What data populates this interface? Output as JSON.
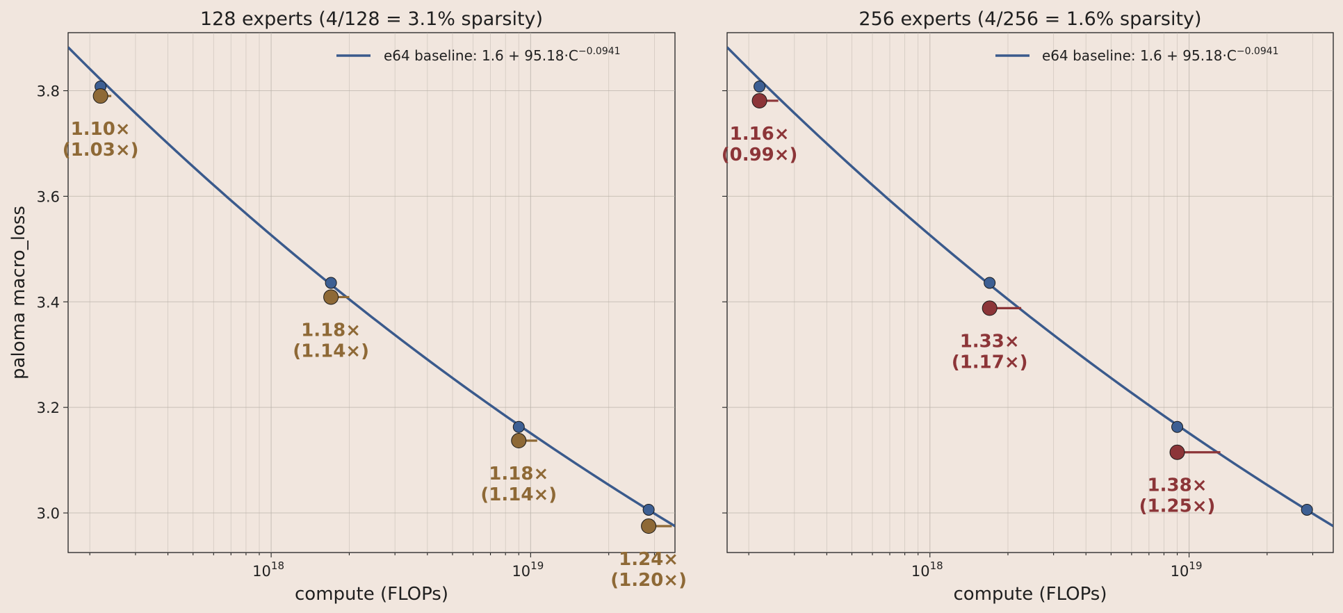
{
  "colors": {
    "background": "#f1e6de",
    "baseline_line": "#3a5a8c",
    "baseline_point": "#3d5f93",
    "panel1_accent": "#8e6936",
    "panel2_accent": "#8c3538",
    "grid": "#b8b0a8"
  },
  "chart_data": [
    {
      "type": "scatter",
      "title": "128 experts  (4/128 = 3.1% sparsity)",
      "xlabel": "compute (FLOPs)",
      "ylabel": "paloma macro_loss",
      "x_scale": "log",
      "xlim": [
        1.65e+17,
        3.6e+19
      ],
      "ylim": [
        2.925,
        3.91
      ],
      "grid": true,
      "legend_position": "top-right",
      "x_ticks": [
        {
          "value": 1e+18,
          "base": "10",
          "exp": "18"
        },
        {
          "value": 1e+19,
          "base": "10",
          "exp": "19"
        }
      ],
      "y_ticks": [
        {
          "value": 3.0,
          "label": "3.0"
        },
        {
          "value": 3.2,
          "label": "3.2"
        },
        {
          "value": 3.4,
          "label": "3.4"
        },
        {
          "value": 3.6,
          "label": "3.6"
        },
        {
          "value": 3.8,
          "label": "3.8"
        }
      ],
      "baseline_fit": {
        "legend_text": "e64 baseline: 1.6 + 95.18·C",
        "legend_exp": "−0.0941",
        "a": 1.6,
        "b": 95.18,
        "exponent": -0.0941
      },
      "baseline_points": [
        {
          "x": 2.2e+17,
          "y": 3.808
        },
        {
          "x": 1.7e+18,
          "y": 3.436
        },
        {
          "x": 9e+18,
          "y": 3.163
        },
        {
          "x": 2.85e+19,
          "y": 3.006
        }
      ],
      "expert_points": [
        {
          "x": 2.2e+17,
          "y": 3.79,
          "line_to": 2.42e+17,
          "label": "1.10×",
          "sublabel": "(1.03×)"
        },
        {
          "x": 1.7e+18,
          "y": 3.409,
          "line_to": 2e+18,
          "label": "1.18×",
          "sublabel": "(1.14×)"
        },
        {
          "x": 9e+18,
          "y": 3.137,
          "line_to": 1.06e+19,
          "label": "1.18×",
          "sublabel": "(1.14×)"
        },
        {
          "x": 2.85e+19,
          "y": 2.975,
          "line_to": 3.5e+19,
          "label": "1.24×",
          "sublabel": "(1.20×)"
        }
      ]
    },
    {
      "type": "scatter",
      "title": "256 experts  (4/256 = 1.6% sparsity)",
      "xlabel": "compute (FLOPs)",
      "ylabel": "",
      "x_scale": "log",
      "xlim": [
        1.65e+17,
        3.6e+19
      ],
      "ylim": [
        2.925,
        3.91
      ],
      "grid": true,
      "legend_position": "top-right",
      "x_ticks": [
        {
          "value": 1e+18,
          "base": "10",
          "exp": "18"
        },
        {
          "value": 1e+19,
          "base": "10",
          "exp": "19"
        }
      ],
      "y_ticks": [
        {
          "value": 3.0,
          "label": ""
        },
        {
          "value": 3.2,
          "label": ""
        },
        {
          "value": 3.4,
          "label": ""
        },
        {
          "value": 3.6,
          "label": ""
        },
        {
          "value": 3.8,
          "label": ""
        }
      ],
      "baseline_fit": {
        "legend_text": "e64 baseline: 1.6 + 95.18·C",
        "legend_exp": "−0.0941",
        "a": 1.6,
        "b": 95.18,
        "exponent": -0.0941
      },
      "baseline_points": [
        {
          "x": 2.2e+17,
          "y": 3.808
        },
        {
          "x": 1.7e+18,
          "y": 3.436
        },
        {
          "x": 9e+18,
          "y": 3.163
        },
        {
          "x": 2.85e+19,
          "y": 3.006
        }
      ],
      "expert_points": [
        {
          "x": 2.2e+17,
          "y": 3.781,
          "line_to": 2.6e+17,
          "label": "1.16×",
          "sublabel": "(0.99×)"
        },
        {
          "x": 1.7e+18,
          "y": 3.388,
          "line_to": 2.25e+18,
          "label": "1.33×",
          "sublabel": "(1.17×)"
        },
        {
          "x": 9e+18,
          "y": 3.115,
          "line_to": 1.32e+19,
          "label": "1.38×",
          "sublabel": "(1.25×)"
        }
      ]
    }
  ]
}
